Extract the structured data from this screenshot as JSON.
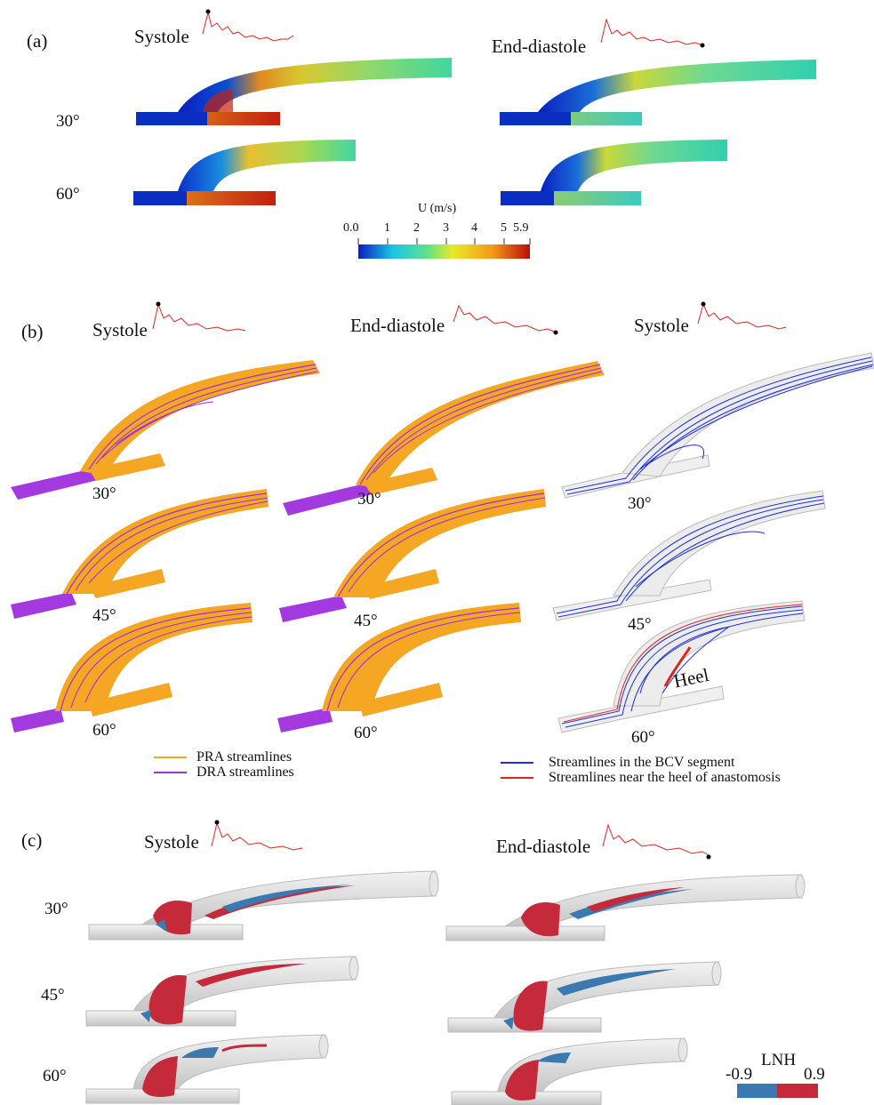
{
  "panel_a": {
    "label": "(a)",
    "phases": [
      "Systole",
      "End-diastole"
    ],
    "angles": [
      "30°",
      "60°"
    ],
    "colorbar": {
      "title": "U (m/s)",
      "ticks": [
        "0.0",
        "1",
        "2",
        "3",
        "4",
        "5",
        "5.9"
      ],
      "min": 0.0,
      "max": 5.9,
      "colors": [
        "#0a1fbf",
        "#19c6e6",
        "#5fe08a",
        "#e8ea2a",
        "#f59a18",
        "#b90d0d"
      ]
    }
  },
  "panel_b": {
    "label": "(b)",
    "phases": [
      "Systole",
      "End-diastole",
      "Systole"
    ],
    "angles": [
      "30°",
      "45°",
      "60°"
    ],
    "annotation": "Heel",
    "legend_left": [
      "PRA streamlines",
      "DRA streamlines"
    ],
    "legend_right": [
      "Streamlines in the BCV segment",
      "Streamlines near the heel of anastomosis"
    ],
    "colors": {
      "pra": "#f5a623",
      "dra": "#9b30d9",
      "bcv": "#1f2fd8",
      "heel": "#e0251f"
    }
  },
  "panel_c": {
    "label": "(c)",
    "phases": [
      "Systole",
      "End-diastole"
    ],
    "angles": [
      "30°",
      "45°",
      "60°"
    ],
    "colorbar": {
      "title": "LNH",
      "min_label": "-0.9",
      "max_label": "0.9",
      "colors": [
        "#3a7ab0",
        "#c42a3a"
      ]
    }
  }
}
